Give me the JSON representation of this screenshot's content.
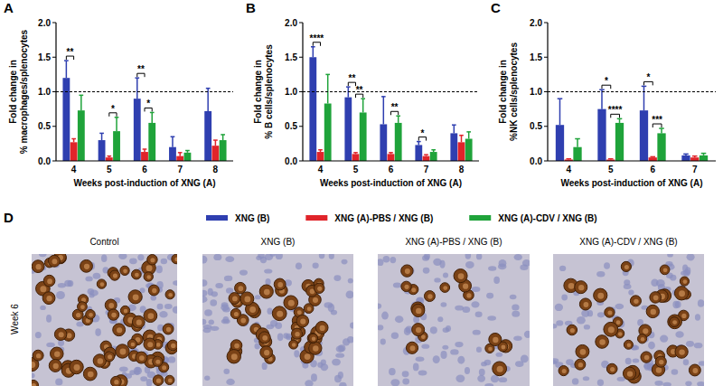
{
  "chart_data": [
    {
      "type": "bar",
      "panel": "A",
      "y_label": [
        "Fold change in",
        "% macrophages/splenocytes"
      ],
      "x_label": "Weeks post-induction of XNG (A)",
      "categories": [
        "4",
        "5",
        "6",
        "7",
        "8"
      ],
      "ylim": [
        0,
        2
      ],
      "yticks": [
        {
          "value": 0,
          "label": "0.0"
        },
        0.5,
        {
          "value": 1,
          "label": "1.0"
        },
        1.5,
        {
          "value": 2,
          "label": "2.0"
        }
      ],
      "reference_line": 1,
      "series": [
        {
          "name": "XNG (B)",
          "color": "#2f3fb0",
          "values": [
            1.2,
            0.3,
            0.9,
            0.2,
            0.72
          ],
          "errors": [
            0.25,
            0.1,
            0.3,
            0.15,
            0.33
          ]
        },
        {
          "name": "XNG (A)-PBS / XNG (B)",
          "color": "#e0242a",
          "values": [
            0.27,
            0.05,
            0.13,
            0.07,
            0.22
          ],
          "errors": [
            0.05,
            0.02,
            0.04,
            0.05,
            0.08
          ]
        },
        {
          "name": "XNG (A)-CDV / XNG (B)",
          "color": "#1fa33a",
          "values": [
            0.73,
            0.43,
            0.55,
            0.12,
            0.3
          ],
          "errors": [
            0.22,
            0.2,
            0.15,
            0.03,
            0.08
          ]
        }
      ],
      "significance": [
        {
          "category": "4",
          "between": [
            "XNG (B)",
            "XNG (A)-PBS / XNG (B)"
          ],
          "label": "**"
        },
        {
          "category": "5",
          "between": [
            "XNG (A)-PBS / XNG (B)",
            "XNG (A)-CDV / XNG (B)"
          ],
          "label": "*"
        },
        {
          "category": "6",
          "between": [
            "XNG (B)",
            "XNG (A)-PBS / XNG (B)"
          ],
          "label": "**"
        },
        {
          "category": "6",
          "between": [
            "XNG (A)-PBS / XNG (B)",
            "XNG (A)-CDV / XNG (B)"
          ],
          "label": "*"
        }
      ]
    },
    {
      "type": "bar",
      "panel": "B",
      "y_label": [
        "Fold change in",
        "% B cells/splenocytes"
      ],
      "x_label": "Weeks post-induction of XNG (A)",
      "categories": [
        "4",
        "5",
        "6",
        "7",
        "8"
      ],
      "ylim": [
        0,
        2
      ],
      "yticks": [
        {
          "value": 0,
          "label": "0.0"
        },
        0.5,
        {
          "value": 1,
          "label": "1.0"
        },
        1.5,
        {
          "value": 2,
          "label": "2.0"
        }
      ],
      "reference_line": 1,
      "series": [
        {
          "name": "XNG (B)",
          "color": "#2f3fb0",
          "values": [
            1.5,
            0.92,
            0.53,
            0.23,
            0.4
          ],
          "errors": [
            0.15,
            0.15,
            0.4,
            0.05,
            0.12
          ]
        },
        {
          "name": "XNG (A)-PBS / XNG (B)",
          "color": "#e0242a",
          "values": [
            0.13,
            0.1,
            0.1,
            0.07,
            0.27
          ],
          "errors": [
            0.03,
            0.02,
            0.02,
            0.02,
            0.1
          ]
        },
        {
          "name": "XNG (A)-CDV / XNG (B)",
          "color": "#1fa33a",
          "values": [
            0.83,
            0.7,
            0.55,
            0.13,
            0.32
          ],
          "errors": [
            0.42,
            0.2,
            0.1,
            0.03,
            0.1
          ]
        }
      ],
      "significance": [
        {
          "category": "4",
          "between": [
            "XNG (B)",
            "XNG (A)-PBS / XNG (B)"
          ],
          "label": "****"
        },
        {
          "category": "5",
          "between": [
            "XNG (B)",
            "XNG (A)-PBS / XNG (B)"
          ],
          "label": "**"
        },
        {
          "category": "5",
          "between": [
            "XNG (A)-PBS / XNG (B)",
            "XNG (A)-CDV / XNG (B)"
          ],
          "label": "**"
        },
        {
          "category": "6",
          "between": [
            "XNG (A)-PBS / XNG (B)",
            "XNG (A)-CDV / XNG (B)"
          ],
          "label": "**"
        },
        {
          "category": "7",
          "between": [
            "XNG (B)",
            "XNG (A)-PBS / XNG (B)"
          ],
          "label": "*"
        }
      ]
    },
    {
      "type": "bar",
      "panel": "C",
      "y_label": [
        "Fold change in",
        "%NK cells/splenocytes"
      ],
      "x_label": "Weeks post-induction of XNG (A)",
      "categories": [
        "4",
        "5",
        "6",
        "7"
      ],
      "ylim": [
        0,
        2
      ],
      "yticks": [
        {
          "value": 0,
          "label": "0.0"
        },
        0.5,
        {
          "value": 1,
          "label": "1.0"
        },
        1.5,
        {
          "value": 2,
          "label": "2.0"
        }
      ],
      "reference_line": 1,
      "series": [
        {
          "name": "XNG (B)",
          "color": "#2f3fb0",
          "values": [
            0.52,
            0.75,
            0.73,
            0.08
          ],
          "errors": [
            0.38,
            0.28,
            0.35,
            0.02
          ]
        },
        {
          "name": "XNG (A)-PBS / XNG (B)",
          "color": "#e0242a",
          "values": [
            0.02,
            0.02,
            0.05,
            0.05
          ],
          "errors": [
            0.01,
            0.01,
            0.01,
            0.02
          ]
        },
        {
          "name": "XNG (A)-CDV / XNG (B)",
          "color": "#1fa33a",
          "values": [
            0.2,
            0.55,
            0.4,
            0.08
          ],
          "errors": [
            0.12,
            0.06,
            0.07,
            0.03
          ]
        }
      ],
      "significance": [
        {
          "category": "5",
          "between": [
            "XNG (B)",
            "XNG (A)-PBS / XNG (B)"
          ],
          "label": "*"
        },
        {
          "category": "5",
          "between": [
            "XNG (A)-PBS / XNG (B)",
            "XNG (A)-CDV / XNG (B)"
          ],
          "label": "****"
        },
        {
          "category": "6",
          "between": [
            "XNG (B)",
            "XNG (A)-PBS / XNG (B)"
          ],
          "label": "*"
        },
        {
          "category": "6",
          "between": [
            "XNG (A)-PBS / XNG (B)",
            "XNG (A)-CDV / XNG (B)"
          ],
          "label": "***"
        }
      ]
    }
  ],
  "panel_d": {
    "panel": "D",
    "row_label": "Week 6",
    "images": [
      {
        "title": "Control"
      },
      {
        "title": "XNG (B)"
      },
      {
        "title": "XNG (A)-PBS / XNG (B)"
      },
      {
        "title": "XNG (A)-CDV / XNG (B)"
      }
    ]
  }
}
